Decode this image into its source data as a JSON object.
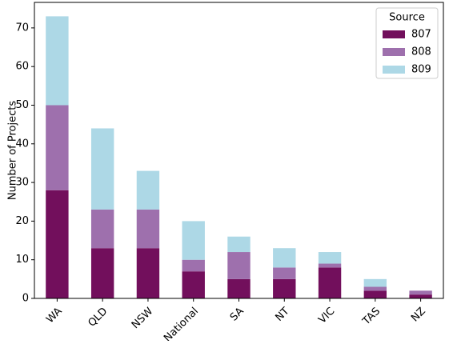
{
  "chart_data": {
    "type": "stacked-bar",
    "ylabel": "Number of Projects",
    "categories": [
      "WA",
      "QLD",
      "NSW",
      "National",
      "SA",
      "NT",
      "VIC",
      "TAS",
      "NZ"
    ],
    "series": [
      {
        "name": "807",
        "color": "#720f5c",
        "values": [
          28,
          13,
          13,
          7,
          5,
          5,
          8,
          2,
          1
        ]
      },
      {
        "name": "808",
        "color": "#9e70ad",
        "values": [
          22,
          10,
          10,
          3,
          7,
          3,
          1,
          1,
          1
        ]
      },
      {
        "name": "809",
        "color": "#add8e6",
        "values": [
          23,
          21,
          10,
          10,
          4,
          5,
          3,
          2,
          0
        ]
      }
    ],
    "legend_title": "Source",
    "legend_position": "upper right",
    "ylim": [
      0,
      76.6
    ],
    "yticks": [
      0,
      10,
      20,
      30,
      40,
      50,
      60,
      70
    ],
    "grid": false
  }
}
